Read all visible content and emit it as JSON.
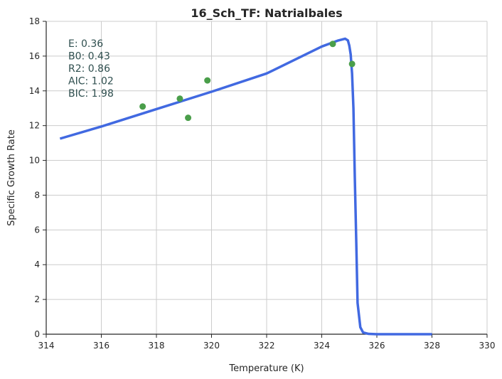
{
  "chart_data": {
    "type": "line",
    "title": "16_Sch_TF: Natrialbales",
    "xlabel": "Temperature (K)",
    "ylabel": "Specific Growth Rate",
    "xlim": [
      314,
      330
    ],
    "ylim": [
      0,
      18
    ],
    "x_ticks": [
      314,
      316,
      318,
      320,
      322,
      324,
      326,
      328,
      330
    ],
    "y_ticks": [
      0,
      2,
      4,
      6,
      8,
      10,
      12,
      14,
      16,
      18
    ],
    "grid": true,
    "annotations": [
      "E:  0.36",
      "B0:  0.43",
      "R2:  0.86",
      "AIC: 1.02",
      "BIC: 1.98"
    ],
    "series": [
      {
        "kind": "line",
        "color": "#4169e1",
        "x": [
          314.5,
          316,
          318,
          320,
          322,
          324,
          324.6,
          324.85,
          324.95,
          325.0,
          325.05,
          325.1,
          325.15,
          325.2,
          325.25,
          325.3,
          325.4,
          325.5,
          325.7,
          326,
          328
        ],
        "y": [
          11.25,
          11.95,
          12.95,
          13.95,
          15.0,
          16.55,
          16.9,
          17.0,
          16.9,
          16.6,
          16.1,
          15.0,
          13.0,
          9.0,
          5.5,
          1.8,
          0.4,
          0.1,
          0.02,
          0.0,
          0.0
        ]
      },
      {
        "kind": "scatter",
        "color": "#4a9e4a",
        "x": [
          317.5,
          318.85,
          319.15,
          319.85,
          324.4,
          325.1
        ],
        "y": [
          13.1,
          13.55,
          12.45,
          14.6,
          16.7,
          15.55
        ]
      }
    ]
  }
}
